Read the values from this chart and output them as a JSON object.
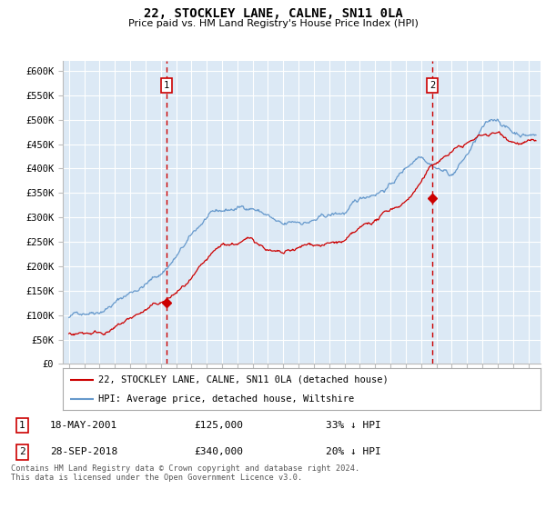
{
  "title": "22, STOCKLEY LANE, CALNE, SN11 0LA",
  "subtitle": "Price paid vs. HM Land Registry's House Price Index (HPI)",
  "ylabel_ticks": [
    "£0",
    "£50K",
    "£100K",
    "£150K",
    "£200K",
    "£250K",
    "£300K",
    "£350K",
    "£400K",
    "£450K",
    "£500K",
    "£550K",
    "£600K"
  ],
  "ylim": [
    0,
    620000
  ],
  "xlim_start": 1994.6,
  "xlim_end": 2025.8,
  "sale1_x": 2001.375,
  "sale1_y": 125000,
  "sale1_label": "1",
  "sale1_date": "18-MAY-2001",
  "sale1_price": "£125,000",
  "sale1_note": "33% ↓ HPI",
  "sale2_x": 2018.74,
  "sale2_y": 340000,
  "sale2_label": "2",
  "sale2_date": "28-SEP-2018",
  "sale2_price": "£340,000",
  "sale2_note": "20% ↓ HPI",
  "legend_line1": "22, STOCKLEY LANE, CALNE, SN11 0LA (detached house)",
  "legend_line2": "HPI: Average price, detached house, Wiltshire",
  "footer": "Contains HM Land Registry data © Crown copyright and database right 2024.\nThis data is licensed under the Open Government Licence v3.0.",
  "bg_color": "#dce9f5",
  "plot_bg": "#dce9f5",
  "grid_color": "#ffffff",
  "hpi_color": "#6699cc",
  "price_color": "#cc0000",
  "vline_color": "#cc0000"
}
